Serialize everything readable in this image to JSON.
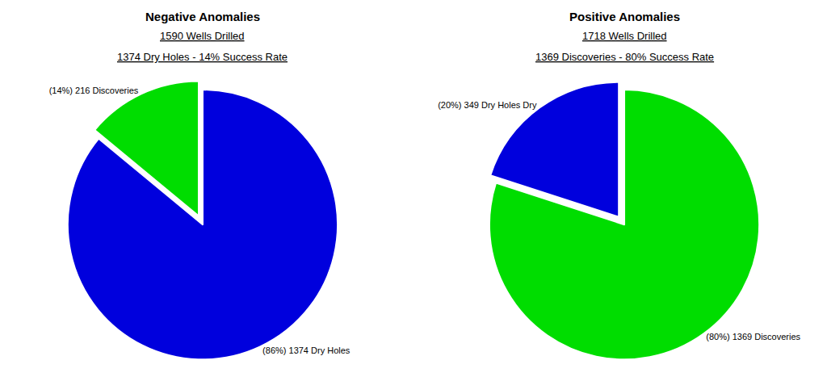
{
  "chart_data": [
    {
      "type": "pie",
      "title": "Negative Anomalies",
      "subtitle": [
        "1590 Wells Drilled",
        "1374 Dry Holes - 14% Success Rate"
      ],
      "values": [
        86,
        14
      ],
      "colors": [
        "#0000dd",
        "#00dd00"
      ],
      "annotations": [
        "(86%) 1374 Dry Holes",
        "(14%) 216 Discoveries"
      ]
    },
    {
      "type": "pie",
      "title": "Positive Anomalies",
      "subtitle": [
        "1718 Wells Drilled",
        "1369 Discoveries - 80% Success Rate"
      ],
      "values": [
        80,
        20
      ],
      "colors": [
        "#00dd00",
        "#0000dd"
      ],
      "annotations": [
        "(80%) 1369 Discoveries",
        "(20%) 349 Dry Holes Dry"
      ]
    }
  ]
}
